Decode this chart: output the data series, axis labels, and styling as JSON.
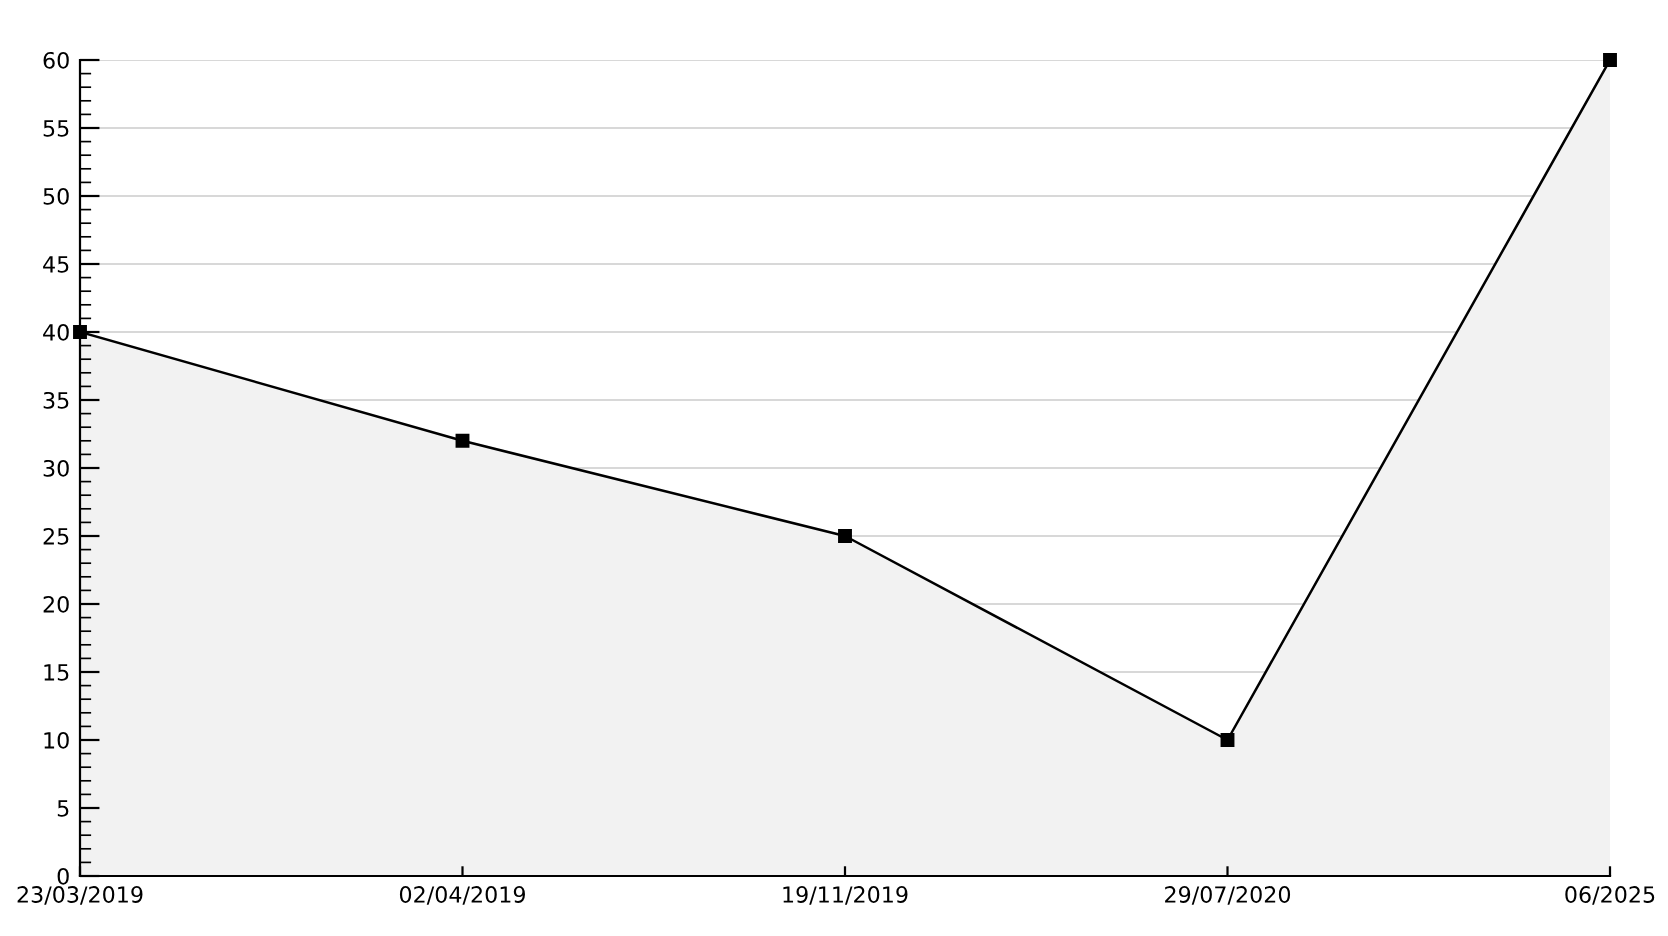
{
  "chart_data": {
    "type": "area",
    "categories": [
      "23/03/2019",
      "02/04/2019",
      "19/11/2019",
      "29/07/2020",
      "06/2025"
    ],
    "series": [
      {
        "color": "#000000",
        "values": [
          40,
          32,
          25,
          10,
          60
        ]
      }
    ],
    "ylim": [
      0,
      60
    ],
    "yticks": [
      0,
      5,
      10,
      15,
      20,
      25,
      30,
      35,
      40,
      45,
      50,
      55,
      60
    ],
    "grid": "y",
    "marker": "square",
    "line_style": "solid",
    "legend": false
  }
}
